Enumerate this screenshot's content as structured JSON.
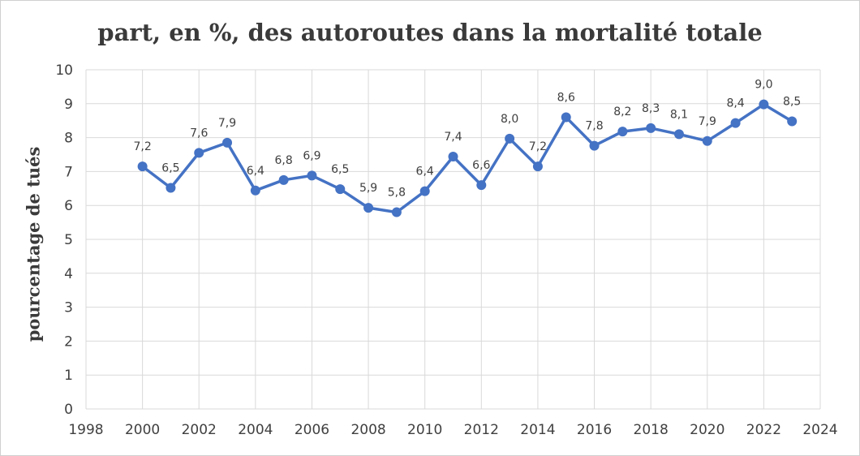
{
  "chart_data": {
    "type": "line",
    "title": "part, en %, des autoroutes dans la mortalité totale",
    "xlabel": "",
    "ylabel": "pourcentage de tués",
    "xlim": [
      1998,
      2024
    ],
    "ylim": [
      0,
      10
    ],
    "x_ticks": [
      1998,
      2000,
      2002,
      2004,
      2006,
      2008,
      2010,
      2012,
      2014,
      2016,
      2018,
      2020,
      2022,
      2024
    ],
    "y_ticks": [
      0,
      1,
      2,
      3,
      4,
      5,
      6,
      7,
      8,
      9,
      10
    ],
    "grid": true,
    "legend": "none",
    "series": [
      {
        "color": "#4472c4",
        "x": [
          2000,
          2001,
          2002,
          2003,
          2004,
          2005,
          2006,
          2007,
          2008,
          2009,
          2010,
          2011,
          2012,
          2013,
          2014,
          2015,
          2016,
          2017,
          2018,
          2019,
          2020,
          2021,
          2022,
          2023
        ],
        "y": [
          7.15,
          6.52,
          7.55,
          7.85,
          6.44,
          6.75,
          6.88,
          6.48,
          5.93,
          5.8,
          6.42,
          7.44,
          6.6,
          7.97,
          7.15,
          8.6,
          7.76,
          8.18,
          8.28,
          8.1,
          7.9,
          8.43,
          8.98,
          8.48
        ],
        "labels": [
          "7,2",
          "6,5",
          "7,6",
          "7,9",
          "6,4",
          "6,8",
          "6,9",
          "6,5",
          "5,9",
          "5,8",
          "6,4",
          "7,4",
          "6,6",
          "8,0",
          "7,2",
          "8,6",
          "7,8",
          "8,2",
          "8,3",
          "8,1",
          "7,9",
          "8,4",
          "9,0",
          "8,5"
        ]
      }
    ]
  }
}
